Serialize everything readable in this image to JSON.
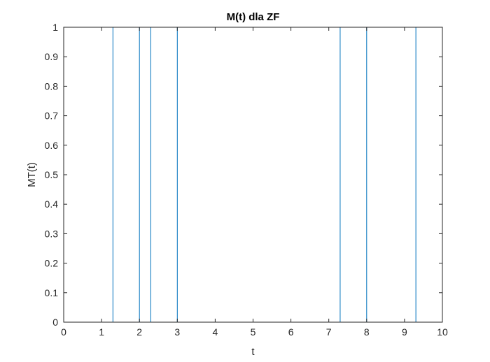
{
  "chart_data": {
    "type": "line",
    "title": "M(t) dla ZF",
    "xlabel": "t",
    "ylabel": "MT(t)",
    "xlim": [
      0,
      10
    ],
    "ylim": [
      0,
      1
    ],
    "x_ticks": [
      0,
      1,
      2,
      3,
      4,
      5,
      6,
      7,
      8,
      9,
      10
    ],
    "x_tick_labels": [
      "0",
      "1",
      "2",
      "3",
      "4",
      "5",
      "6",
      "7",
      "8",
      "9",
      "10"
    ],
    "y_ticks": [
      0,
      0.1,
      0.2,
      0.3,
      0.4,
      0.5,
      0.6,
      0.7,
      0.8,
      0.9,
      1
    ],
    "y_tick_labels": [
      "0",
      "0.1",
      "0.2",
      "0.3",
      "0.4",
      "0.5",
      "0.6",
      "0.7",
      "0.8",
      "0.9",
      "1"
    ],
    "grid": false,
    "series": [
      {
        "color": "#0072BD",
        "x": [
          0,
          1.3,
          1.3,
          2.0,
          2.0,
          2.3,
          2.3,
          3.0,
          3.0,
          7.3,
          7.3,
          8.0,
          8.0,
          9.3,
          9.3,
          10
        ],
        "y": [
          0,
          0,
          1,
          1,
          0,
          0,
          1,
          1,
          0,
          0,
          1,
          1,
          0,
          0,
          1,
          1
        ]
      }
    ]
  }
}
